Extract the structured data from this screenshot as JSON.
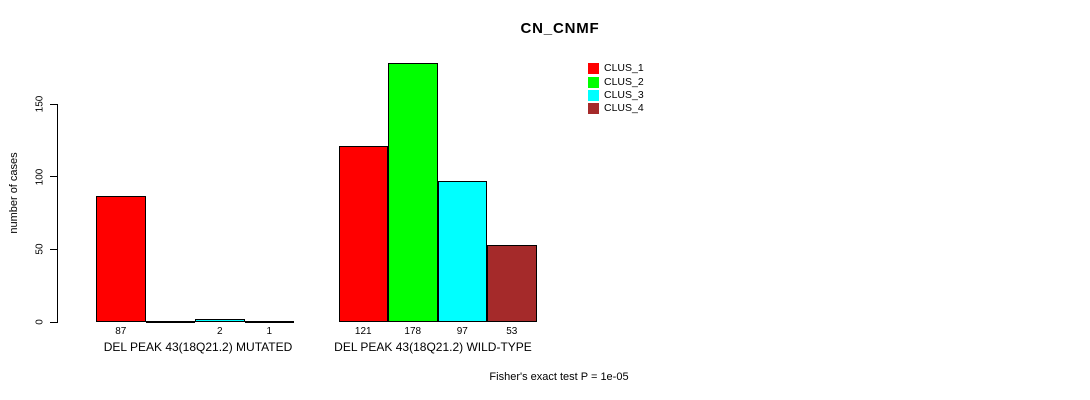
{
  "chart_data": {
    "type": "bar",
    "title": "CN_CNMF",
    "ylabel": "number of cases",
    "xlabel": "",
    "y_ticks": [
      0,
      50,
      100,
      150
    ],
    "ylim": [
      0,
      178
    ],
    "grid": false,
    "legend_position": "top-right",
    "categories": [
      "DEL PEAK 43(18Q21.2) MUTATED",
      "DEL PEAK 43(18Q21.2) WILD-TYPE"
    ],
    "series": [
      {
        "name": "CLUS_1",
        "color": "#FF0000",
        "values": [
          87,
          121
        ]
      },
      {
        "name": "CLUS_2",
        "color": "#00FF00",
        "values": [
          0,
          178
        ]
      },
      {
        "name": "CLUS_3",
        "color": "#00FFFF",
        "values": [
          2,
          97
        ]
      },
      {
        "name": "CLUS_4",
        "color": "#A52A2A",
        "values": [
          1,
          53
        ]
      }
    ],
    "bar_value_labels": [
      [
        "87",
        "",
        "2",
        "1"
      ],
      [
        "121",
        "178",
        "97",
        "53"
      ]
    ],
    "footnote": "Fisher's exact test P = 1e-05"
  }
}
